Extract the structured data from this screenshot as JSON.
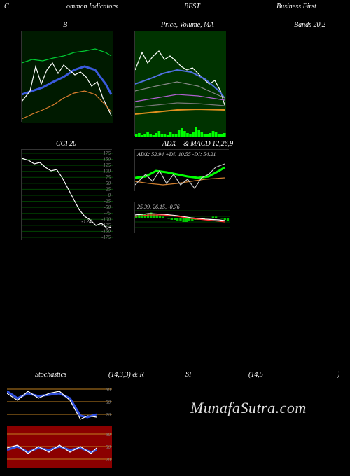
{
  "header": {
    "left": "C",
    "mid_left": "ommon  Indicators",
    "mid": "BFST",
    "right": "Business First"
  },
  "panel_b": {
    "title": "B",
    "bg": "#001a00",
    "lines": {
      "green": {
        "color": "#00cc33",
        "pts": [
          [
            0,
            45
          ],
          [
            15,
            40
          ],
          [
            30,
            42
          ],
          [
            45,
            38
          ],
          [
            60,
            35
          ],
          [
            75,
            30
          ],
          [
            90,
            28
          ],
          [
            105,
            25
          ],
          [
            120,
            30
          ],
          [
            128,
            35
          ]
        ]
      },
      "blue": {
        "color": "#3a5add",
        "width": 3,
        "pts": [
          [
            0,
            90
          ],
          [
            15,
            85
          ],
          [
            30,
            80
          ],
          [
            45,
            72
          ],
          [
            60,
            65
          ],
          [
            75,
            55
          ],
          [
            90,
            50
          ],
          [
            105,
            55
          ],
          [
            120,
            75
          ],
          [
            128,
            90
          ]
        ]
      },
      "white": {
        "color": "#ffffff",
        "pts": [
          [
            0,
            100
          ],
          [
            12,
            85
          ],
          [
            20,
            50
          ],
          [
            28,
            75
          ],
          [
            36,
            55
          ],
          [
            44,
            45
          ],
          [
            52,
            60
          ],
          [
            60,
            48
          ],
          [
            68,
            55
          ],
          [
            76,
            62
          ],
          [
            84,
            58
          ],
          [
            92,
            65
          ],
          [
            100,
            78
          ],
          [
            108,
            72
          ],
          [
            116,
            95
          ],
          [
            128,
            120
          ]
        ]
      },
      "orange": {
        "color": "#e08030",
        "pts": [
          [
            0,
            125
          ],
          [
            15,
            118
          ],
          [
            30,
            112
          ],
          [
            45,
            105
          ],
          [
            60,
            95
          ],
          [
            75,
            88
          ],
          [
            90,
            85
          ],
          [
            105,
            90
          ],
          [
            120,
            105
          ],
          [
            128,
            115
          ]
        ]
      }
    }
  },
  "panel_price": {
    "title": "Price,  Volume,  MA",
    "bg": "#003300",
    "lines": {
      "white": {
        "color": "#ffffff",
        "pts": [
          [
            0,
            55
          ],
          [
            10,
            30
          ],
          [
            18,
            45
          ],
          [
            26,
            35
          ],
          [
            34,
            28
          ],
          [
            42,
            40
          ],
          [
            50,
            35
          ],
          [
            58,
            42
          ],
          [
            66,
            50
          ],
          [
            74,
            55
          ],
          [
            82,
            52
          ],
          [
            90,
            60
          ],
          [
            98,
            68
          ],
          [
            106,
            75
          ],
          [
            114,
            70
          ],
          [
            122,
            85
          ],
          [
            128,
            105
          ]
        ]
      },
      "blue": {
        "color": "#5070e0",
        "width": 2,
        "pts": [
          [
            0,
            75
          ],
          [
            20,
            68
          ],
          [
            40,
            60
          ],
          [
            60,
            55
          ],
          [
            80,
            58
          ],
          [
            100,
            68
          ],
          [
            120,
            85
          ],
          [
            128,
            95
          ]
        ]
      },
      "grey1": {
        "color": "#888888",
        "pts": [
          [
            0,
            85
          ],
          [
            30,
            78
          ],
          [
            60,
            72
          ],
          [
            90,
            78
          ],
          [
            128,
            95
          ]
        ]
      },
      "purple": {
        "color": "#b060d0",
        "pts": [
          [
            0,
            100
          ],
          [
            30,
            95
          ],
          [
            60,
            90
          ],
          [
            90,
            92
          ],
          [
            128,
            98
          ]
        ]
      },
      "grey2": {
        "color": "#777777",
        "pts": [
          [
            0,
            108
          ],
          [
            30,
            105
          ],
          [
            60,
            102
          ],
          [
            90,
            103
          ],
          [
            128,
            106
          ]
        ]
      },
      "orange": {
        "color": "#e09020",
        "width": 2,
        "pts": [
          [
            0,
            118
          ],
          [
            30,
            115
          ],
          [
            60,
            112
          ],
          [
            90,
            111
          ],
          [
            128,
            112
          ]
        ]
      }
    },
    "volume_bars": {
      "color": "#00ff00",
      "heights": [
        3,
        5,
        2,
        4,
        6,
        3,
        2,
        5,
        8,
        4,
        3,
        2,
        6,
        4,
        3,
        9,
        12,
        8,
        5,
        3,
        7,
        14,
        10,
        6,
        4,
        3,
        5,
        8,
        6,
        4,
        3,
        5
      ]
    }
  },
  "panel_bands": {
    "title": "Bands 20,2"
  },
  "panel_cci": {
    "title": "CCI 20",
    "bg": "#000000",
    "grid_color": "#004400",
    "y_ticks": [
      175,
      150,
      125,
      100,
      75,
      50,
      25,
      0,
      -25,
      -50,
      -75,
      -100,
      -125,
      -150,
      -175
    ],
    "value_label": "-124",
    "line": {
      "color": "#ffffff",
      "pts": [
        [
          0,
          12
        ],
        [
          10,
          15
        ],
        [
          18,
          20
        ],
        [
          26,
          18
        ],
        [
          34,
          25
        ],
        [
          42,
          30
        ],
        [
          50,
          28
        ],
        [
          58,
          40
        ],
        [
          66,
          55
        ],
        [
          74,
          70
        ],
        [
          82,
          85
        ],
        [
          90,
          95
        ],
        [
          98,
          100
        ],
        [
          106,
          108
        ],
        [
          114,
          105
        ],
        [
          122,
          112
        ],
        [
          128,
          110
        ]
      ]
    }
  },
  "panel_adx": {
    "title_prefix": "ADX",
    "title_suffix": "& MACD 12,26,9",
    "label": "ADX: 52.94   +DI: 10.55 -DI: 54.21",
    "bg": "#000000",
    "lines": {
      "green": {
        "color": "#00ff00",
        "width": 3,
        "pts": [
          [
            0,
            40
          ],
          [
            15,
            38
          ],
          [
            30,
            30
          ],
          [
            45,
            32
          ],
          [
            60,
            35
          ],
          [
            75,
            38
          ],
          [
            90,
            40
          ],
          [
            105,
            38
          ],
          [
            120,
            30
          ],
          [
            128,
            25
          ]
        ]
      },
      "orange": {
        "color": "#d08030",
        "pts": [
          [
            0,
            45
          ],
          [
            20,
            48
          ],
          [
            40,
            50
          ],
          [
            60,
            48
          ],
          [
            80,
            45
          ],
          [
            100,
            42
          ],
          [
            128,
            40
          ]
        ]
      },
      "white": {
        "color": "#cccccc",
        "pts": [
          [
            0,
            50
          ],
          [
            15,
            35
          ],
          [
            25,
            45
          ],
          [
            35,
            30
          ],
          [
            45,
            48
          ],
          [
            55,
            35
          ],
          [
            65,
            50
          ],
          [
            75,
            42
          ],
          [
            85,
            55
          ],
          [
            95,
            40
          ],
          [
            105,
            35
          ],
          [
            115,
            25
          ],
          [
            128,
            20
          ]
        ]
      }
    }
  },
  "panel_macd": {
    "label": "25.39,  26.15,  -0.76",
    "bg": "#000000",
    "grid_color": "#004400",
    "bars": {
      "color": "#00cc00",
      "heights": [
        2,
        3,
        3,
        4,
        4,
        5,
        4,
        3,
        2,
        1,
        0,
        -1,
        -2,
        -2,
        -3,
        -3,
        -4,
        -4,
        -3,
        -3,
        -2,
        -2,
        -1,
        -1,
        0,
        0,
        1,
        1,
        0,
        -1,
        -2,
        -3
      ]
    },
    "lines": {
      "white": {
        "color": "#ffffff",
        "pts": [
          [
            0,
            18
          ],
          [
            20,
            16
          ],
          [
            40,
            17
          ],
          [
            60,
            19
          ],
          [
            80,
            22
          ],
          [
            100,
            24
          ],
          [
            120,
            25
          ],
          [
            128,
            26
          ]
        ]
      },
      "red": {
        "color": "#ff3030",
        "pts": [
          [
            0,
            20
          ],
          [
            20,
            18
          ],
          [
            40,
            18
          ],
          [
            60,
            20
          ],
          [
            80,
            23
          ],
          [
            100,
            25
          ],
          [
            120,
            27
          ],
          [
            128,
            28
          ]
        ]
      }
    }
  },
  "panel_stoch": {
    "title_left": "Stochastics",
    "title_mid": "(14,3,3) & R",
    "title_si": "SI",
    "title_right": "(14,5",
    "title_end": ")",
    "upper": {
      "bg": "#000000",
      "band_color": "#c08020",
      "bands": [
        80,
        50,
        20
      ],
      "labels": [
        "80",
        "50",
        "20"
      ],
      "lines": {
        "blue": {
          "color": "#3050e0",
          "width": 3,
          "pts": [
            [
              0,
              15
            ],
            [
              15,
              25
            ],
            [
              30,
              18
            ],
            [
              45,
              22
            ],
            [
              60,
              20
            ],
            [
              75,
              18
            ],
            [
              90,
              25
            ],
            [
              105,
              50
            ],
            [
              115,
              52
            ],
            [
              128,
              48
            ]
          ]
        },
        "white": {
          "color": "#ffffff",
          "pts": [
            [
              0,
              18
            ],
            [
              15,
              28
            ],
            [
              30,
              15
            ],
            [
              45,
              25
            ],
            [
              60,
              18
            ],
            [
              75,
              15
            ],
            [
              90,
              28
            ],
            [
              105,
              55
            ],
            [
              115,
              50
            ],
            [
              128,
              52
            ]
          ]
        }
      }
    },
    "lower": {
      "bg": "#8b0000",
      "band_color": "#c08020",
      "bands": [
        80,
        50,
        20
      ],
      "labels": [
        "80",
        "50",
        "20"
      ],
      "lines": {
        "blue": {
          "color": "#3050e0",
          "width": 3,
          "pts": [
            [
              0,
              35
            ],
            [
              15,
              30
            ],
            [
              30,
              38
            ],
            [
              45,
              32
            ],
            [
              60,
              35
            ],
            [
              75,
              30
            ],
            [
              90,
              35
            ],
            [
              105,
              32
            ],
            [
              120,
              38
            ],
            [
              128,
              35
            ]
          ]
        },
        "white": {
          "color": "#ffffff",
          "pts": [
            [
              0,
              32
            ],
            [
              15,
              28
            ],
            [
              30,
              40
            ],
            [
              45,
              30
            ],
            [
              60,
              38
            ],
            [
              75,
              28
            ],
            [
              90,
              38
            ],
            [
              105,
              30
            ],
            [
              120,
              40
            ],
            [
              128,
              32
            ]
          ]
        }
      }
    }
  },
  "watermark": "MunafaSutra.com"
}
